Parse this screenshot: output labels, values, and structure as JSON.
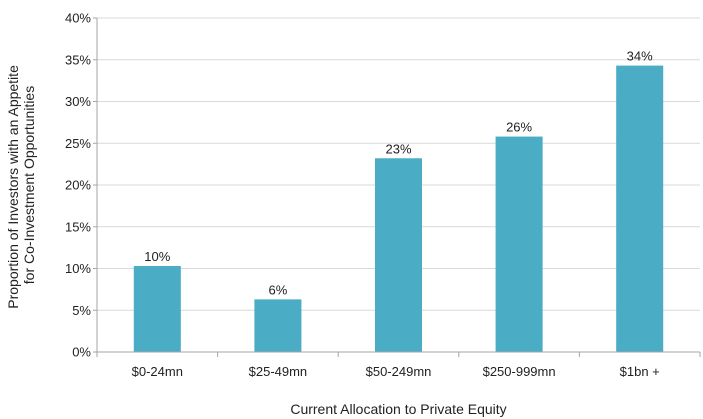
{
  "chart_data": {
    "type": "bar",
    "categories": [
      "$0-24mn",
      "$25-49mn",
      "$50-249mn",
      "$250-999mn",
      "$1bn +"
    ],
    "values": [
      10.3,
      6.3,
      23.2,
      25.8,
      34.3
    ],
    "data_labels": [
      "10%",
      "6%",
      "23%",
      "26%",
      "34%"
    ],
    "xlabel": "Current Allocation to Private Equity",
    "ylabel_lines": [
      "Proportion of Investors with an Appetite",
      "for Co-Investment Opportunities"
    ],
    "ylim": [
      0,
      40
    ],
    "yticks": [
      0,
      5,
      10,
      15,
      20,
      25,
      30,
      35,
      40
    ],
    "ytick_labels": [
      "0%",
      "5%",
      "10%",
      "15%",
      "20%",
      "25%",
      "30%",
      "35%",
      "40%"
    ],
    "grid": true,
    "legend": "none",
    "bar_color": "#4bacc6",
    "gridline_color": "#d9d9d9",
    "axis_color": "#a6a6a6"
  }
}
